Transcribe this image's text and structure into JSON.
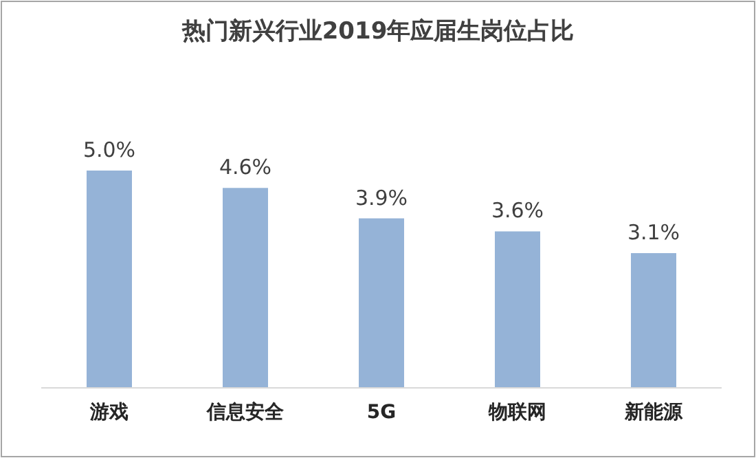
{
  "chart_data": {
    "type": "bar",
    "title": "热门新兴行业2019年应届生岗位占比",
    "categories": [
      "游戏",
      "信息安全",
      "5G",
      "物联网",
      "新能源"
    ],
    "values": [
      5.0,
      4.6,
      3.9,
      3.6,
      3.1
    ],
    "value_labels": [
      "5.0%",
      "4.6%",
      "3.9%",
      "3.6%",
      "3.1%"
    ],
    "color": "#95b3d7"
  }
}
